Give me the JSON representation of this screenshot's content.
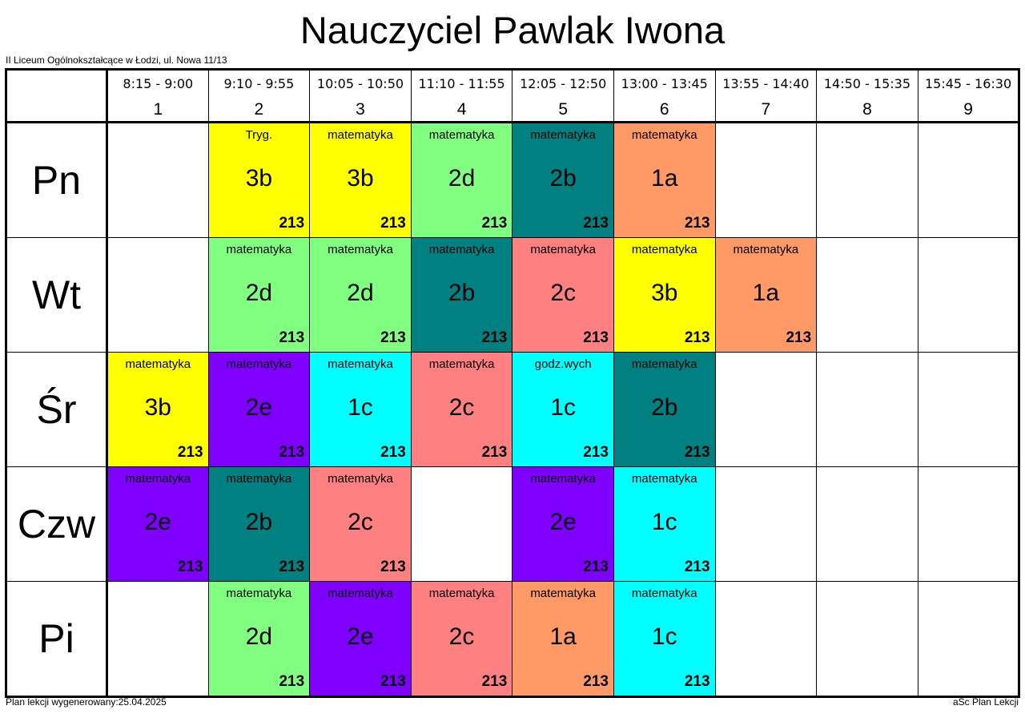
{
  "title": "Nauczyciel Pawlak Iwona",
  "school": "II Liceum Ogólnokształcące w Łodzi, ul. Nowa 11/13",
  "footer": {
    "generated": "Plan lekcji wygenerowany:25.04.2025",
    "app": "aSc Plan Lekcji"
  },
  "colors": {
    "yellow": "#ffff00",
    "lightgreen": "#80ff80",
    "teal": "#008080",
    "orange": "#ff9966",
    "salmon": "#ff8080",
    "purple": "#8000ff",
    "cyan": "#00ffff"
  },
  "periods": [
    {
      "time": "8:15 - 9:00",
      "num": "1"
    },
    {
      "time": "9:10 - 9:55",
      "num": "2"
    },
    {
      "time": "10:05 - 10:50",
      "num": "3"
    },
    {
      "time": "11:10 - 11:55",
      "num": "4"
    },
    {
      "time": "12:05 - 12:50",
      "num": "5"
    },
    {
      "time": "13:00 - 13:45",
      "num": "6"
    },
    {
      "time": "13:55 - 14:40",
      "num": "7"
    },
    {
      "time": "14:50 - 15:35",
      "num": "8"
    },
    {
      "time": "15:45 - 16:30",
      "num": "9"
    }
  ],
  "days": [
    {
      "label": "Pn",
      "lessons": [
        null,
        {
          "subject": "Tryg.",
          "class": "3b",
          "room": "213",
          "color": "#ffff00"
        },
        {
          "subject": "matematyka",
          "class": "3b",
          "room": "213",
          "color": "#ffff00"
        },
        {
          "subject": "matematyka",
          "class": "2d",
          "room": "213",
          "color": "#80ff80"
        },
        {
          "subject": "matematyka",
          "class": "2b",
          "room": "213",
          "color": "#008080"
        },
        {
          "subject": "matematyka",
          "class": "1a",
          "room": "213",
          "color": "#ff9966"
        },
        null,
        null,
        null
      ]
    },
    {
      "label": "Wt",
      "lessons": [
        null,
        {
          "subject": "matematyka",
          "class": "2d",
          "room": "213",
          "color": "#80ff80"
        },
        {
          "subject": "matematyka",
          "class": "2d",
          "room": "213",
          "color": "#80ff80"
        },
        {
          "subject": "matematyka",
          "class": "2b",
          "room": "213",
          "color": "#008080"
        },
        {
          "subject": "matematyka",
          "class": "2c",
          "room": "213",
          "color": "#ff8080"
        },
        {
          "subject": "matematyka",
          "class": "3b",
          "room": "213",
          "color": "#ffff00"
        },
        {
          "subject": "matematyka",
          "class": "1a",
          "room": "213",
          "color": "#ff9966"
        },
        null,
        null
      ]
    },
    {
      "label": "Śr",
      "lessons": [
        {
          "subject": "matematyka",
          "class": "3b",
          "room": "213",
          "color": "#ffff00"
        },
        {
          "subject": "matematyka",
          "class": "2e",
          "room": "213",
          "color": "#8000ff"
        },
        {
          "subject": "matematyka",
          "class": "1c",
          "room": "213",
          "color": "#00ffff"
        },
        {
          "subject": "matematyka",
          "class": "2c",
          "room": "213",
          "color": "#ff8080"
        },
        {
          "subject": "godz.wych",
          "class": "1c",
          "room": "213",
          "color": "#00ffff"
        },
        {
          "subject": "matematyka",
          "class": "2b",
          "room": "213",
          "color": "#008080"
        },
        null,
        null,
        null
      ]
    },
    {
      "label": "Czw",
      "lessons": [
        {
          "subject": "matematyka",
          "class": "2e",
          "room": "213",
          "color": "#8000ff"
        },
        {
          "subject": "matematyka",
          "class": "2b",
          "room": "213",
          "color": "#008080"
        },
        {
          "subject": "matematyka",
          "class": "2c",
          "room": "213",
          "color": "#ff8080"
        },
        null,
        {
          "subject": "matematyka",
          "class": "2e",
          "room": "213",
          "color": "#8000ff"
        },
        {
          "subject": "matematyka",
          "class": "1c",
          "room": "213",
          "color": "#00ffff"
        },
        null,
        null,
        null
      ]
    },
    {
      "label": "Pi",
      "lessons": [
        null,
        {
          "subject": "matematyka",
          "class": "2d",
          "room": "213",
          "color": "#80ff80"
        },
        {
          "subject": "matematyka",
          "class": "2e",
          "room": "213",
          "color": "#8000ff"
        },
        {
          "subject": "matematyka",
          "class": "2c",
          "room": "213",
          "color": "#ff8080"
        },
        {
          "subject": "matematyka",
          "class": "1a",
          "room": "213",
          "color": "#ff9966"
        },
        {
          "subject": "matematyka",
          "class": "1c",
          "room": "213",
          "color": "#00ffff"
        },
        null,
        null,
        null
      ]
    }
  ]
}
